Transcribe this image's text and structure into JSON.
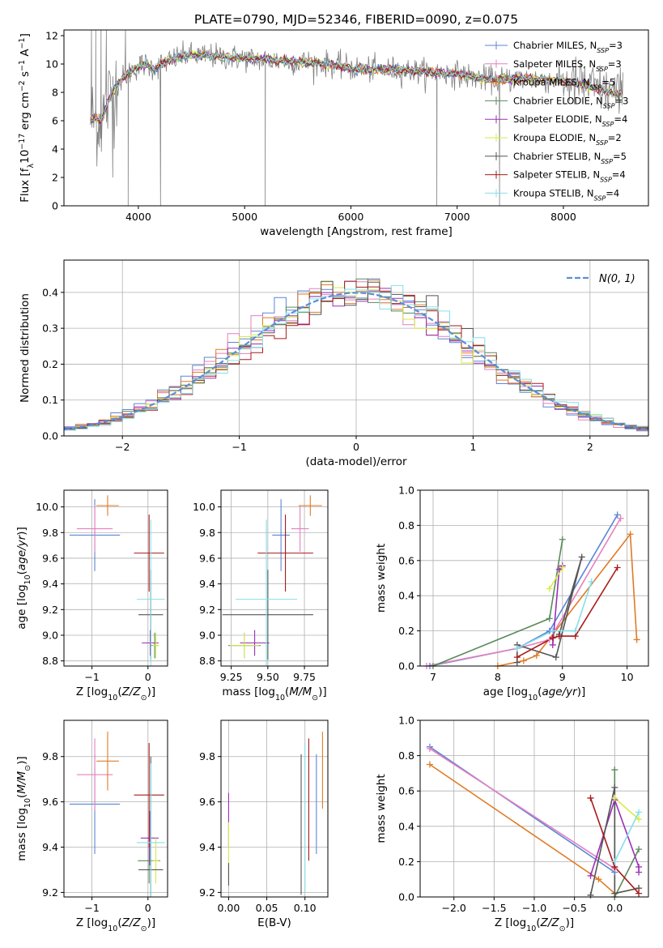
{
  "figure": {
    "title": "PLATE=0790, MJD=52346, FIBERID=0090, z=0.075"
  },
  "colors": {
    "Chabrier MILES": "#5b86d6",
    "Salpeter MILES": "#e57fbf",
    "Kroupa MILES": "#e07b25",
    "Chabrier ELODIE": "#5a8a5a",
    "Salpeter ELODIE": "#9b30b8",
    "Kroupa ELODIE": "#d8ea48",
    "Chabrier STELIB": "#555555",
    "Salpeter STELIB": "#a81a1a",
    "Kroupa STELIB": "#86dfe8",
    "data": "#808080",
    "gaussian": "#5b8ed6"
  },
  "chart_data": [
    {
      "id": "spectrum",
      "type": "line",
      "title": "PLATE=0790, MJD=52346, FIBERID=0090, z=0.075",
      "xlabel": "wavelength [Angstrom, rest frame]",
      "ylabel": "Flux [f_λ10^-17 erg cm^-2 s^-1 A^-1]",
      "xlim": [
        3300,
        8800
      ],
      "ylim": [
        0,
        12.4
      ],
      "xticks": [
        4000,
        5000,
        6000,
        7000,
        8000
      ],
      "yticks": [
        0,
        2,
        4,
        6,
        8,
        10,
        12
      ],
      "legend_position": "upper-right",
      "legend": [
        {
          "model": "Chabrier MILES",
          "nssp": "3"
        },
        {
          "model": "Salpeter MILES",
          "nssp": "3"
        },
        {
          "model": "Kroupa MILES",
          "nssp": "5"
        },
        {
          "model": "Chabrier ELODIE",
          "nssp": "3"
        },
        {
          "model": "Salpeter ELODIE",
          "nssp": "4"
        },
        {
          "model": "Kroupa ELODIE",
          "nssp": "2"
        },
        {
          "model": "Chabrier STELIB",
          "nssp": "5"
        },
        {
          "model": "Salpeter STELIB",
          "nssp": "4"
        },
        {
          "model": "Kroupa STELIB",
          "nssp": "4"
        }
      ],
      "continuum": {
        "x": [
          3550,
          3650,
          3750,
          3850,
          3950,
          4050,
          4150,
          4250,
          4350,
          4450,
          4600,
          4800,
          5000,
          5200,
          5400,
          5600,
          5800,
          6000,
          6200,
          6400,
          6600,
          6800,
          7000,
          7200,
          7400,
          7600,
          7800,
          8000,
          8200,
          8400,
          8560
        ],
        "y": [
          6.2,
          6.0,
          8.0,
          9.0,
          9.6,
          10.0,
          9.7,
          10.1,
          10.4,
          10.6,
          10.6,
          10.5,
          10.4,
          10.3,
          10.2,
          10.1,
          10.0,
          9.7,
          9.6,
          9.6,
          9.5,
          9.4,
          9.3,
          9.0,
          8.9,
          9.0,
          8.9,
          8.8,
          8.5,
          8.1,
          7.8
        ]
      }
    },
    {
      "id": "residuals",
      "type": "step",
      "xlabel": "(data-model)/error",
      "ylabel": "Normed distribution",
      "xlim": [
        -2.5,
        2.5
      ],
      "ylim": [
        0,
        0.49
      ],
      "xticks": [
        -2,
        -1,
        0,
        1,
        2
      ],
      "yticks": [
        0.0,
        0.1,
        0.2,
        0.3,
        0.4
      ],
      "legend_label": "N(0, 1)",
      "legend_position": "upper-right"
    },
    {
      "id": "age_vs_Z",
      "type": "errorbar",
      "xlabel": "Z [log10(Z/Z⊙)]",
      "ylabel": "age [log10(age/yr)]",
      "xlim": [
        -1.5,
        0.35
      ],
      "ylim": [
        8.76,
        10.13
      ],
      "xticks": [
        -1,
        0
      ],
      "yticks": [
        8.8,
        9.0,
        9.2,
        9.4,
        9.6,
        9.8,
        10.0
      ],
      "points": [
        {
          "model": "Chabrier MILES",
          "x": -0.95,
          "xerr": 0.45,
          "y": 9.78,
          "yerr": 0.28
        },
        {
          "model": "Salpeter MILES",
          "x": -0.95,
          "xerr": 0.32,
          "y": 9.83,
          "yerr": 0.18
        },
        {
          "model": "Kroupa MILES",
          "x": -0.72,
          "xerr": 0.2,
          "y": 10.01,
          "yerr": 0.08
        },
        {
          "model": "Chabrier ELODIE",
          "x": 0.12,
          "xerr": 0.06,
          "y": 8.92,
          "yerr": 0.1
        },
        {
          "model": "Salpeter ELODIE",
          "x": 0.04,
          "xerr": 0.15,
          "y": 8.94,
          "yerr": 0.1
        },
        {
          "model": "Kroupa ELODIE",
          "x": 0.14,
          "xerr": 0.06,
          "y": 8.92,
          "yerr": 0.1
        },
        {
          "model": "Chabrier STELIB",
          "x": 0.05,
          "xerr": 0.22,
          "y": 9.16,
          "yerr": 0.35
        },
        {
          "model": "Salpeter STELIB",
          "x": 0.02,
          "xerr": 0.27,
          "y": 9.64,
          "yerr": 0.3
        },
        {
          "model": "Kroupa STELIB",
          "x": 0.05,
          "xerr": 0.25,
          "y": 9.28,
          "yerr": 0.62
        }
      ]
    },
    {
      "id": "age_vs_mass",
      "type": "errorbar",
      "xlabel": "mass [log10(M/M⊙)]",
      "ylabel": "",
      "xlim": [
        9.18,
        9.91
      ],
      "ylim": [
        8.76,
        10.13
      ],
      "xticks": [
        9.25,
        9.5,
        9.75
      ],
      "yticks": [
        8.8,
        9.0,
        9.2,
        9.4,
        9.6,
        9.8,
        10.0
      ],
      "points": [
        {
          "model": "Chabrier MILES",
          "x": 9.59,
          "xerr": 0.06,
          "y": 9.78,
          "yerr": 0.28
        },
        {
          "model": "Salpeter MILES",
          "x": 9.72,
          "xerr": 0.06,
          "y": 9.83,
          "yerr": 0.18
        },
        {
          "model": "Kroupa MILES",
          "x": 9.79,
          "xerr": 0.08,
          "y": 10.01,
          "yerr": 0.08
        },
        {
          "model": "Chabrier ELODIE",
          "x": 9.34,
          "xerr": 0.11,
          "y": 8.92,
          "yerr": 0.1
        },
        {
          "model": "Salpeter ELODIE",
          "x": 9.41,
          "xerr": 0.1,
          "y": 8.94,
          "yerr": 0.1
        },
        {
          "model": "Kroupa ELODIE",
          "x": 9.34,
          "xerr": 0.1,
          "y": 8.92,
          "yerr": 0.1
        },
        {
          "model": "Chabrier STELIB",
          "x": 9.5,
          "xerr": 0.31,
          "y": 9.16,
          "yerr": 0.35
        },
        {
          "model": "Salpeter STELIB",
          "x": 9.62,
          "xerr": 0.19,
          "y": 9.64,
          "yerr": 0.3
        },
        {
          "model": "Kroupa STELIB",
          "x": 9.49,
          "xerr": 0.21,
          "y": 9.28,
          "yerr": 0.62
        }
      ]
    },
    {
      "id": "weight_vs_age",
      "type": "line",
      "xlabel": "age [log10(age/yr)]",
      "ylabel": "mass weight",
      "xlim": [
        6.8,
        10.33
      ],
      "ylim": [
        0,
        1.0
      ],
      "xticks": [
        7,
        8,
        9,
        10
      ],
      "yticks": [
        0.0,
        0.2,
        0.4,
        0.6,
        0.8,
        1.0
      ],
      "series": [
        {
          "model": "Chabrier MILES",
          "points": [
            [
              6.95,
              0.0
            ],
            [
              8.3,
              0.1
            ],
            [
              8.8,
              0.2
            ],
            [
              9.85,
              0.86
            ]
          ]
        },
        {
          "model": "Salpeter MILES",
          "points": [
            [
              6.9,
              0.0
            ],
            [
              8.3,
              0.1
            ],
            [
              8.8,
              0.15
            ],
            [
              9.9,
              0.84
            ]
          ]
        },
        {
          "model": "Kroupa MILES",
          "points": [
            [
              8.0,
              0.0
            ],
            [
              8.4,
              0.03
            ],
            [
              8.6,
              0.06
            ],
            [
              10.05,
              0.75
            ],
            [
              10.15,
              0.15
            ]
          ]
        },
        {
          "model": "Chabrier ELODIE",
          "points": [
            [
              7.0,
              0.0
            ],
            [
              8.8,
              0.27
            ],
            [
              9.0,
              0.72
            ]
          ]
        },
        {
          "model": "Salpeter ELODIE",
          "points": [
            [
              8.85,
              0.12
            ],
            [
              8.95,
              0.55
            ],
            [
              9.0,
              0.57
            ]
          ]
        },
        {
          "model": "Kroupa ELODIE",
          "points": [
            [
              8.8,
              0.44
            ],
            [
              9.0,
              0.56
            ]
          ]
        },
        {
          "model": "Chabrier STELIB",
          "points": [
            [
              8.3,
              0.02
            ],
            [
              8.3,
              0.12
            ],
            [
              8.9,
              0.05
            ],
            [
              9.3,
              0.62
            ],
            [
              8.95,
              0.18
            ]
          ]
        },
        {
          "model": "Salpeter STELIB",
          "points": [
            [
              8.3,
              0.05
            ],
            [
              8.85,
              0.16
            ],
            [
              8.95,
              0.17
            ],
            [
              9.2,
              0.17
            ],
            [
              9.85,
              0.56
            ]
          ]
        },
        {
          "model": "Kroupa STELIB",
          "points": [
            [
              8.3,
              0.1
            ],
            [
              8.85,
              0.2
            ],
            [
              9.2,
              0.2
            ],
            [
              9.45,
              0.48
            ]
          ]
        }
      ]
    },
    {
      "id": "mass_vs_Z",
      "type": "errorbar",
      "xlabel": "Z [log10(Z/Z⊙)]",
      "ylabel": "mass [log10(M/M⊙)]",
      "xlim": [
        -1.5,
        0.35
      ],
      "ylim": [
        9.18,
        9.96
      ],
      "xticks": [
        -1,
        0
      ],
      "yticks": [
        9.2,
        9.4,
        9.6,
        9.8
      ],
      "points": [
        {
          "model": "Chabrier MILES",
          "x": -0.95,
          "xerr": 0.45,
          "y": 9.59,
          "yerr": 0.22
        },
        {
          "model": "Salpeter MILES",
          "x": -0.95,
          "xerr": 0.32,
          "y": 9.72,
          "yerr": 0.16
        },
        {
          "model": "Kroupa MILES",
          "x": -0.72,
          "xerr": 0.2,
          "y": 9.78,
          "yerr": 0.13
        },
        {
          "model": "Chabrier ELODIE",
          "x": 0.02,
          "xerr": 0.2,
          "y": 9.34,
          "yerr": 0.1
        },
        {
          "model": "Salpeter ELODIE",
          "x": 0.03,
          "xerr": 0.16,
          "y": 9.44,
          "yerr": 0.12
        },
        {
          "model": "Kroupa ELODIE",
          "x": 0.14,
          "xerr": 0.06,
          "y": 9.34,
          "yerr": 0.1
        },
        {
          "model": "Chabrier STELIB",
          "x": 0.05,
          "xerr": 0.22,
          "y": 9.3,
          "yerr": 0.5
        },
        {
          "model": "Salpeter STELIB",
          "x": 0.02,
          "xerr": 0.27,
          "y": 9.63,
          "yerr": 0.23
        },
        {
          "model": "Kroupa STELIB",
          "x": 0.05,
          "xerr": 0.25,
          "y": 9.42,
          "yerr": 0.35
        }
      ]
    },
    {
      "id": "mass_vs_ebv",
      "type": "errorbar",
      "xlabel": "E(B-V)",
      "ylabel": "",
      "xlim": [
        -0.01,
        0.13
      ],
      "ylim": [
        9.18,
        9.96
      ],
      "xticks": [
        0.0,
        0.05,
        0.1
      ],
      "yticks": [
        9.2,
        9.4,
        9.6,
        9.8
      ],
      "points": [
        {
          "model": "Salpeter ELODIE",
          "x": 0.0,
          "xerr": 0,
          "y": 9.52,
          "yerr": 0.12
        },
        {
          "model": "Kroupa ELODIE",
          "x": 0.0,
          "xerr": 0,
          "y": 9.38,
          "yerr": 0.13
        },
        {
          "model": "Chabrier STELIB",
          "x": 0.0,
          "xerr": 0,
          "y": 9.28,
          "yerr": 0.05
        },
        {
          "model": "Chabrier STELIB",
          "x": 0.095,
          "xerr": 0,
          "y": 9.5,
          "yerr": 0.31
        },
        {
          "model": "Kroupa STELIB",
          "x": 0.1,
          "xerr": 0,
          "y": 9.53,
          "yerr": 0.33
        },
        {
          "model": "Salpeter STELIB",
          "x": 0.105,
          "xerr": 0,
          "y": 9.61,
          "yerr": 0.27
        },
        {
          "model": "Chabrier MILES",
          "x": 0.115,
          "xerr": 0,
          "y": 9.59,
          "yerr": 0.22
        },
        {
          "model": "Kroupa MILES",
          "x": 0.123,
          "xerr": 0,
          "y": 9.74,
          "yerr": 0.17
        }
      ]
    },
    {
      "id": "weight_vs_Z",
      "type": "line",
      "xlabel": "Z [log10(Z/Z⊙)]",
      "ylabel": "mass weight",
      "xlim": [
        -2.42,
        0.42
      ],
      "ylim": [
        0,
        1.0
      ],
      "xticks": [
        -2.0,
        -1.5,
        -1.0,
        -0.5,
        0.0
      ],
      "yticks": [
        0.0,
        0.2,
        0.4,
        0.6,
        0.8,
        1.0
      ],
      "series": [
        {
          "model": "Chabrier MILES",
          "points": [
            [
              -2.3,
              0.85
            ],
            [
              0.0,
              0.14
            ]
          ]
        },
        {
          "model": "Salpeter MILES",
          "points": [
            [
              -2.3,
              0.84
            ],
            [
              0.0,
              0.16
            ]
          ]
        },
        {
          "model": "Kroupa MILES",
          "points": [
            [
              -2.3,
              0.75
            ],
            [
              -0.2,
              0.1
            ],
            [
              0.0,
              0.02
            ],
            [
              0.3,
              0.05
            ]
          ]
        },
        {
          "model": "Chabrier ELODIE",
          "points": [
            [
              0.0,
              0.72
            ],
            [
              0.0,
              0.0
            ],
            [
              0.3,
              0.27
            ]
          ]
        },
        {
          "model": "Salpeter ELODIE",
          "points": [
            [
              -0.3,
              0.12
            ],
            [
              0.0,
              0.55
            ],
            [
              0.3,
              0.17
            ],
            [
              0.3,
              0.14
            ]
          ]
        },
        {
          "model": "Kroupa ELODIE",
          "points": [
            [
              0.0,
              0.56
            ],
            [
              0.3,
              0.44
            ]
          ]
        },
        {
          "model": "Chabrier STELIB",
          "points": [
            [
              -0.3,
              0.01
            ],
            [
              0.0,
              0.62
            ],
            [
              0.0,
              0.02
            ],
            [
              0.3,
              0.05
            ]
          ]
        },
        {
          "model": "Salpeter STELIB",
          "points": [
            [
              -0.3,
              0.56
            ],
            [
              0.0,
              0.17
            ],
            [
              0.3,
              0.02
            ]
          ]
        },
        {
          "model": "Kroupa STELIB",
          "points": [
            [
              0.0,
              0.2
            ],
            [
              0.3,
              0.48
            ]
          ]
        }
      ]
    }
  ]
}
